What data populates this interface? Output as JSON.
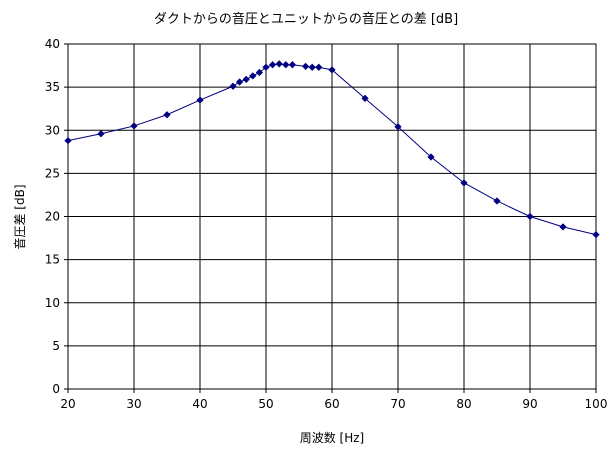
{
  "chart_data": {
    "type": "line",
    "title": "ダクトからの音圧とユニットからの音圧との差 [dB]",
    "xlabel": "周波数 [Hz]",
    "ylabel": "音圧差 [dB]",
    "xlim": [
      20,
      100
    ],
    "ylim": [
      0,
      40
    ],
    "x_ticks": [
      20,
      30,
      40,
      50,
      60,
      70,
      80,
      90,
      100
    ],
    "y_ticks": [
      0,
      5,
      10,
      15,
      20,
      25,
      30,
      35,
      40
    ],
    "grid": true,
    "legend": "none",
    "colors": {
      "series": "#000080",
      "grid": "#000000",
      "background": "#ffffff"
    },
    "series": [
      {
        "x": [
          20,
          25,
          30,
          35,
          40,
          45,
          46,
          47,
          48,
          49,
          50,
          51,
          52,
          53,
          54,
          56,
          57,
          58,
          60,
          65,
          70,
          75,
          80,
          85,
          90,
          95,
          100
        ],
        "y": [
          28.8,
          29.6,
          30.5,
          31.8,
          33.5,
          35.1,
          35.6,
          35.9,
          36.3,
          36.7,
          37.3,
          37.6,
          37.7,
          37.6,
          37.6,
          37.4,
          37.3,
          37.3,
          37.0,
          33.7,
          30.4,
          26.9,
          23.9,
          21.8,
          20.0,
          18.8,
          17.9
        ]
      }
    ]
  }
}
